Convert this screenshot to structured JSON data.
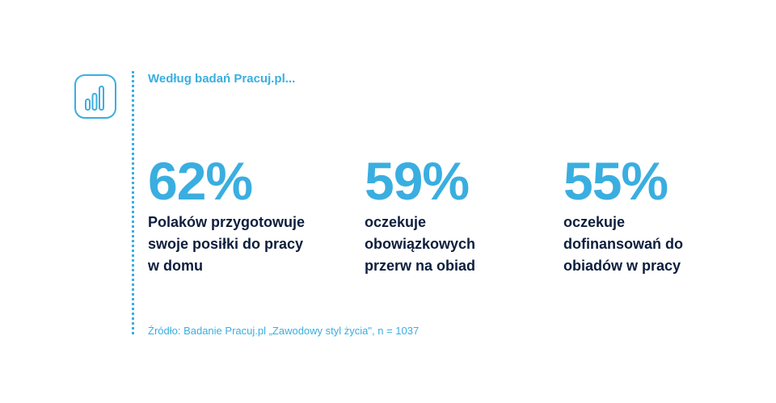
{
  "headline": "Według badań Pracuj.pl...",
  "icon": "bar-chart-icon",
  "colors": {
    "accent": "#3aaee0",
    "text_dark": "#0e1e3d",
    "background": "#ffffff"
  },
  "stats": [
    {
      "value": "62%",
      "lines": [
        "Polaków przygotowuje",
        "swoje posiłki do pracy",
        "w domu"
      ]
    },
    {
      "value": "59%",
      "lines": [
        "oczekuje",
        "obowiązkowych",
        "przerw na obiad"
      ]
    },
    {
      "value": "55%",
      "lines": [
        "oczekuje",
        "dofinansowań do",
        "obiadów w pracy"
      ]
    }
  ],
  "source": "Źródło: Badanie Pracuj.pl „Zawodowy styl życia\", n = 1037"
}
